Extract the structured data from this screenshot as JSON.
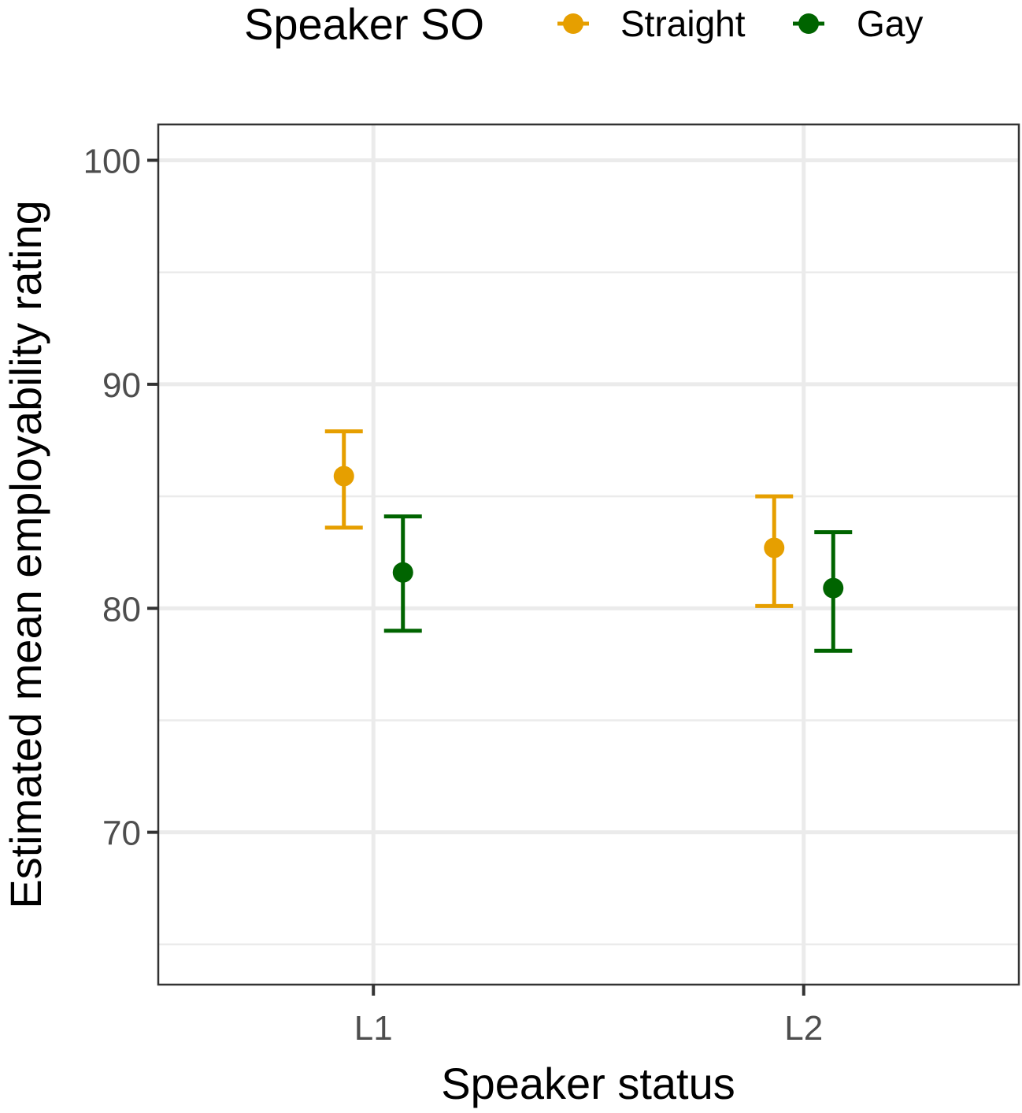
{
  "chart_data": {
    "type": "scatter",
    "subtype": "point-errorbar",
    "title": "",
    "xlabel": "Speaker status",
    "ylabel": "Estimated mean employability rating",
    "categories": [
      "L1",
      "L2"
    ],
    "ylim": [
      63.2,
      101.6
    ],
    "yticks": [
      70,
      80,
      90,
      100
    ],
    "grid": true,
    "legend": {
      "title": "Speaker SO",
      "position": "top"
    },
    "series": [
      {
        "name": "Straight",
        "color": "#E69F00",
        "values": [
          85.9,
          82.7
        ],
        "lower": [
          83.6,
          80.1
        ],
        "upper": [
          87.9,
          85.0
        ]
      },
      {
        "name": "Gay",
        "color": "#006400",
        "values": [
          81.6,
          80.9
        ],
        "lower": [
          79.0,
          78.1
        ],
        "upper": [
          84.1,
          83.4
        ]
      }
    ]
  }
}
